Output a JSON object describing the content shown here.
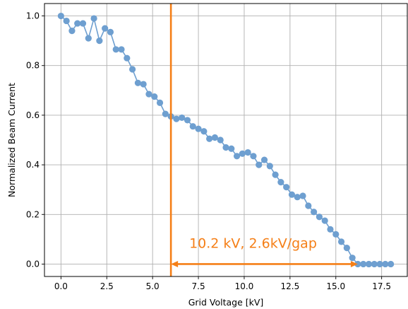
{
  "chart_data": {
    "type": "scatter",
    "title": "",
    "xlabel": "Grid Voltage [kV]",
    "ylabel": "Normalized Beam Current",
    "xlim": [
      -0.9,
      18.9
    ],
    "ylim": [
      -0.05,
      1.05
    ],
    "x_ticks": [
      0.0,
      2.5,
      5.0,
      7.5,
      10.0,
      12.5,
      15.0,
      17.5
    ],
    "x_tick_labels": [
      "0.0",
      "2.5",
      "5.0",
      "7.5",
      "10.0",
      "12.5",
      "15.0",
      "17.5"
    ],
    "y_ticks": [
      0.0,
      0.2,
      0.4,
      0.6,
      0.8,
      1.0
    ],
    "y_tick_labels": [
      "0.0",
      "0.2",
      "0.4",
      "0.6",
      "0.8",
      "1.0"
    ],
    "grid": true,
    "series": [
      {
        "color": "#6e9fd0",
        "line": true,
        "markers": true,
        "x": [
          0.0,
          0.3,
          0.6,
          0.9,
          1.2,
          1.5,
          1.8,
          2.1,
          2.4,
          2.7,
          3.0,
          3.3,
          3.6,
          3.9,
          4.2,
          4.5,
          4.8,
          5.1,
          5.4,
          5.7,
          6.0,
          6.3,
          6.6,
          6.9,
          7.2,
          7.5,
          7.8,
          8.1,
          8.4,
          8.7,
          9.0,
          9.3,
          9.6,
          9.9,
          10.2,
          10.5,
          10.8,
          11.1,
          11.4,
          11.7,
          12.0,
          12.3,
          12.6,
          12.9,
          13.2,
          13.5,
          13.8,
          14.1,
          14.4,
          14.7,
          15.0,
          15.3,
          15.6,
          15.9,
          16.2,
          16.5,
          16.8,
          17.1,
          17.4,
          17.7,
          18.0
        ],
        "y": [
          1.0,
          0.98,
          0.94,
          0.97,
          0.97,
          0.91,
          0.99,
          0.9,
          0.95,
          0.935,
          0.865,
          0.865,
          0.83,
          0.785,
          0.73,
          0.725,
          0.685,
          0.675,
          0.65,
          0.605,
          0.595,
          0.585,
          0.59,
          0.58,
          0.555,
          0.545,
          0.535,
          0.505,
          0.51,
          0.5,
          0.47,
          0.465,
          0.435,
          0.445,
          0.45,
          0.435,
          0.4,
          0.42,
          0.395,
          0.36,
          0.33,
          0.31,
          0.28,
          0.27,
          0.275,
          0.235,
          0.21,
          0.19,
          0.175,
          0.14,
          0.12,
          0.09,
          0.065,
          0.025,
          0.0,
          0.0,
          0.0,
          0.0,
          0.0,
          0.0,
          0.0
        ]
      }
    ],
    "annotations": {
      "vline_x": 6.0,
      "arrow_x_start": 6.0,
      "arrow_x_end": 16.2,
      "arrow_y": 0.0,
      "text": "10.2 kV, 2.6kV/gap",
      "text_x": 7.0,
      "text_y": 0.065,
      "color": "#f57f17"
    }
  }
}
